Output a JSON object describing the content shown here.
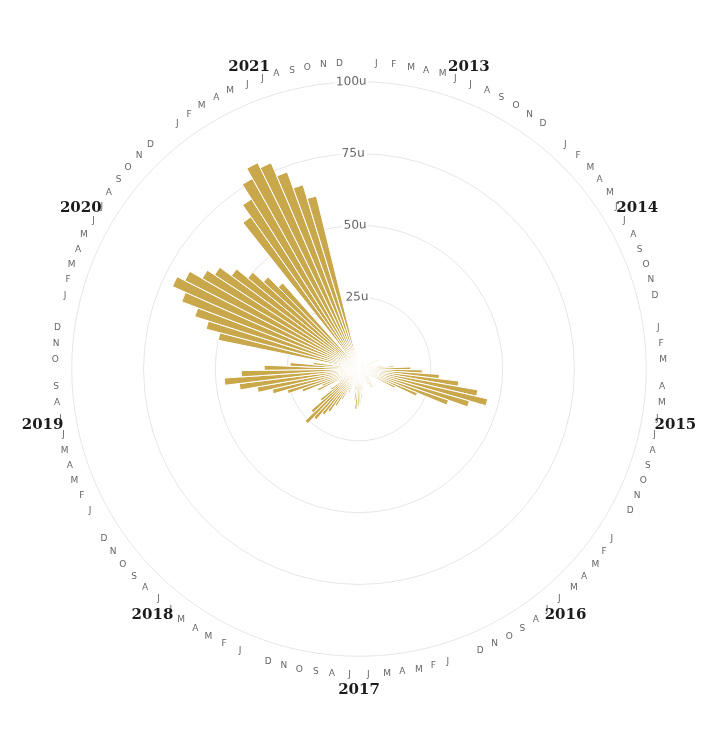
{
  "chart_data": {
    "type": "polar",
    "categories": [
      "J",
      "F",
      "M",
      "A",
      "M",
      "J",
      "J",
      "A",
      "S",
      "O",
      "N",
      "D"
    ],
    "series": [
      {
        "name": "2013",
        "color": "#c9a84c",
        "values": [
          1,
          1,
          1,
          1,
          2,
          2,
          3,
          4,
          2,
          1,
          1,
          1
        ]
      },
      {
        "name": "2014",
        "color": "#c9a84c",
        "values": [
          2,
          1,
          2,
          3,
          4,
          5,
          6,
          7,
          5,
          3,
          2,
          1
        ]
      },
      {
        "name": "2015",
        "color": "#c9a84c",
        "values": [
          8,
          12,
          18,
          22,
          28,
          35,
          42,
          46,
          40,
          33,
          22,
          14
        ]
      },
      {
        "name": "2016",
        "color": "#c9a84c",
        "values": [
          3,
          2,
          4,
          4,
          5,
          6,
          7,
          8,
          6,
          4,
          3,
          2
        ]
      },
      {
        "name": "2017",
        "color": "#c9a84c",
        "values": [
          5,
          4,
          7,
          8,
          10,
          12,
          13,
          14,
          11,
          8,
          5,
          3
        ]
      },
      {
        "name": "2018",
        "color": "#c9a84c",
        "values": [
          9,
          8,
          12,
          15,
          18,
          20,
          23,
          26,
          22,
          17,
          12,
          8
        ]
      },
      {
        "name": "2019",
        "color": "#c9a84c",
        "values": [
          16,
          14,
          21,
          26,
          31,
          36,
          42,
          47,
          41,
          33,
          24,
          16
        ]
      },
      {
        "name": "2020",
        "color": "#c9a84c",
        "values": [
          50,
          55,
          60,
          66,
          71,
          68,
          63,
          60,
          55,
          50,
          45,
          40
        ]
      },
      {
        "name": "2021",
        "color": "#c9a84c",
        "values": [
          65,
          70,
          76,
          80,
          78,
          73,
          67,
          62,
          3,
          1,
          0,
          0
        ]
      }
    ],
    "ylim": [
      0,
      100
    ],
    "yticks": [
      {
        "value": 25,
        "label": "25u"
      },
      {
        "value": 50,
        "label": "50u"
      },
      {
        "value": 75,
        "label": "75u"
      },
      {
        "value": 100,
        "label": "100u"
      }
    ],
    "grid": true
  }
}
